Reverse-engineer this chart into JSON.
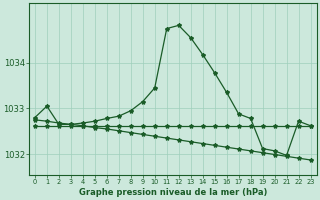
{
  "hours": [
    0,
    1,
    2,
    3,
    4,
    5,
    6,
    7,
    8,
    9,
    10,
    11,
    12,
    13,
    14,
    15,
    16,
    17,
    18,
    19,
    20,
    21,
    22,
    23
  ],
  "curve_y": [
    1032.8,
    1033.05,
    1032.65,
    1032.65,
    1032.68,
    1032.72,
    1032.78,
    1032.83,
    1032.95,
    1033.15,
    1033.45,
    1034.75,
    1034.82,
    1034.55,
    1034.18,
    1033.78,
    1033.35,
    1032.88,
    1032.78,
    1032.12,
    1032.07,
    1031.97,
    1032.72,
    1032.62
  ],
  "flat_y": [
    1032.62,
    1032.62,
    1032.62,
    1032.62,
    1032.62,
    1032.62,
    1032.62,
    1032.62,
    1032.62,
    1032.62,
    1032.62,
    1032.62,
    1032.62,
    1032.62,
    1032.62,
    1032.62,
    1032.62,
    1032.62,
    1032.62,
    1032.62,
    1032.62,
    1032.62,
    1032.62,
    1032.62
  ],
  "diag_y": [
    1032.75,
    1032.72,
    1032.68,
    1032.65,
    1032.62,
    1032.58,
    1032.55,
    1032.51,
    1032.47,
    1032.43,
    1032.39,
    1032.35,
    1032.31,
    1032.27,
    1032.23,
    1032.19,
    1032.15,
    1032.11,
    1032.07,
    1032.03,
    1031.99,
    1031.95,
    1031.91,
    1031.87
  ],
  "bg_color": "#cce8dc",
  "grid_color": "#9fcfbb",
  "line_color": "#1a5c28",
  "label": "Graphe pression niveau de la mer (hPa)",
  "ylim_min": 1031.55,
  "ylim_max": 1035.3,
  "yticks": [
    1032.0,
    1033.0,
    1034.0
  ],
  "marker": "*",
  "marker_size": 3.0,
  "linewidth": 0.9
}
